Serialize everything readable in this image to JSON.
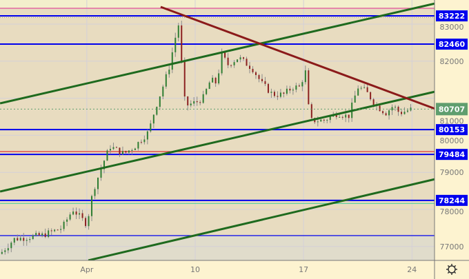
{
  "chart_data": {
    "type": "candlestick",
    "x_unit": "day of April",
    "x_ticks": [
      {
        "label": "Apr",
        "day": 3
      },
      {
        "label": "10",
        "day": 10
      },
      {
        "label": "17",
        "day": 17
      },
      {
        "label": "24",
        "day": 24
      }
    ],
    "y_ticks": [
      77000,
      78000,
      79000,
      80000,
      81000,
      82000,
      83000
    ],
    "ylim": [
      76620,
      83580
    ],
    "xlim": [
      -2.6,
      25.5
    ],
    "grid": true,
    "last_price": 80707,
    "price_path": [
      [
        -2.6,
        76800
      ],
      [
        -1.7,
        77200
      ],
      [
        0.1,
        77300
      ],
      [
        1.4,
        77500
      ],
      [
        2.1,
        78000
      ],
      [
        3.0,
        77600
      ],
      [
        3.4,
        78500
      ],
      [
        4.1,
        79300
      ],
      [
        4.5,
        79700
      ],
      [
        5.4,
        79500
      ],
      [
        6.1,
        79700
      ],
      [
        7.0,
        80100
      ],
      [
        7.4,
        80700
      ],
      [
        7.9,
        81300
      ],
      [
        8.3,
        81800
      ],
      [
        8.8,
        82800
      ],
      [
        9.0,
        83100
      ],
      [
        9.2,
        81200
      ],
      [
        9.4,
        80800
      ],
      [
        10.1,
        80900
      ],
      [
        10.5,
        81000
      ],
      [
        11.0,
        81500
      ],
      [
        11.4,
        81400
      ],
      [
        11.7,
        82200
      ],
      [
        12.1,
        81900
      ],
      [
        12.8,
        82100
      ],
      [
        13.7,
        81800
      ],
      [
        14.3,
        81400
      ],
      [
        15.0,
        81100
      ],
      [
        15.7,
        81100
      ],
      [
        16.3,
        81300
      ],
      [
        16.8,
        81300
      ],
      [
        17.1,
        81800
      ],
      [
        17.4,
        80400
      ],
      [
        18.3,
        80400
      ],
      [
        19.2,
        80600
      ],
      [
        19.9,
        80500
      ],
      [
        20.5,
        81300
      ],
      [
        21.0,
        81200
      ],
      [
        21.7,
        80800
      ],
      [
        22.3,
        80600
      ],
      [
        22.8,
        80800
      ],
      [
        23.2,
        80600
      ],
      [
        24.0,
        80707
      ]
    ],
    "levels": [
      {
        "price": 83428,
        "color": "#e0509a",
        "label": ""
      },
      {
        "price": 83222,
        "color": "#0000ee",
        "label": "83222"
      },
      {
        "price": 82460,
        "color": "#0000ee",
        "label": "82460"
      },
      {
        "price": 80153,
        "color": "#0000ee",
        "label": "80153"
      },
      {
        "price": 79560,
        "color": "#e04040",
        "label": ""
      },
      {
        "price": 79484,
        "color": "#0000ee",
        "label": "79484"
      },
      {
        "price": 78244,
        "color": "#0000ee",
        "label": "78244"
      },
      {
        "price": 78160,
        "color": "#60d0a0",
        "label": ""
      },
      {
        "price": 77294,
        "color": "#0000ee",
        "label": ""
      }
    ],
    "trendlines": [
      {
        "color": "#1e6a1e",
        "from": [
          -2.6,
          80862
        ],
        "to": [
          25.5,
          83558
        ]
      },
      {
        "color": "#1e6a1e",
        "from": [
          -2.6,
          78483
        ],
        "to": [
          25.5,
          81178
        ]
      },
      {
        "color": "#1e6a1e",
        "from": [
          3.1,
          76625
        ],
        "to": [
          25.5,
          78818
        ]
      },
      {
        "color": "#8b1a1a",
        "from": [
          7.77,
          83465
        ],
        "to": [
          25.5,
          80714
        ]
      }
    ],
    "colors": {
      "up": "#2e7d32",
      "down": "#8b2020",
      "wick": "#8a8a8a",
      "badge": "#0000ee",
      "last_badge": "#5f9e6e"
    }
  }
}
